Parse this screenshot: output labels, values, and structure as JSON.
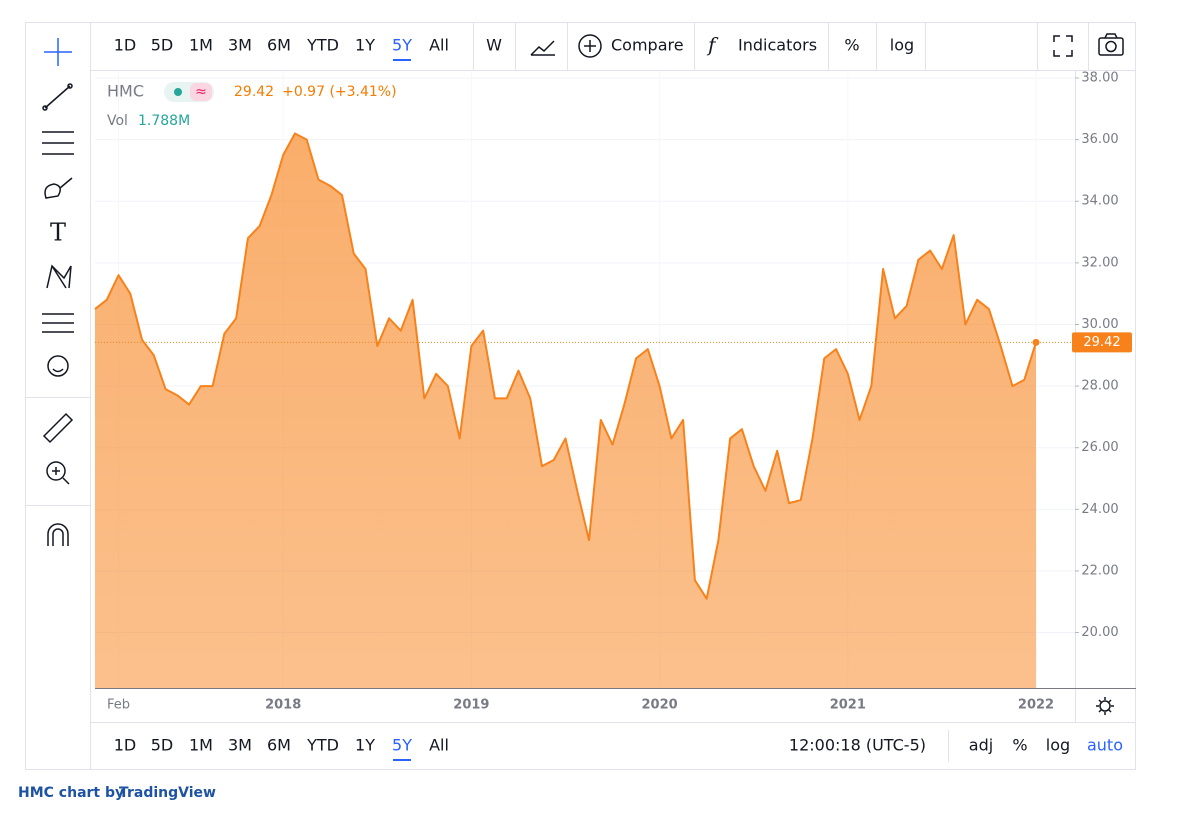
{
  "toolbar": {
    "timeframes": [
      "1D",
      "5D",
      "1M",
      "3M",
      "6M",
      "YTD",
      "1Y",
      "5Y",
      "All"
    ],
    "active": "5Y",
    "interval": "W",
    "compare": "Compare",
    "indicators": "Indicators",
    "percent": "%",
    "log": "log"
  },
  "chart_data": {
    "type": "area",
    "legend": {
      "symbol": "HMC",
      "price": "29.42",
      "change": "+0.97 (+3.41%)",
      "volume_label": "Vol",
      "volume": "1.788M"
    },
    "categories": [
      null,
      null,
      "Feb",
      null,
      null,
      null,
      null,
      null,
      null,
      null,
      null,
      null,
      null,
      null,
      null,
      null,
      "2018",
      null,
      null,
      null,
      null,
      null,
      null,
      null,
      null,
      null,
      null,
      null,
      null,
      null,
      null,
      null,
      "2019",
      null,
      null,
      null,
      null,
      null,
      null,
      null,
      null,
      null,
      null,
      null,
      null,
      null,
      null,
      null,
      "2020",
      null,
      null,
      null,
      null,
      null,
      null,
      null,
      null,
      null,
      null,
      null,
      null,
      null,
      null,
      null,
      "2021",
      null,
      null,
      null,
      null,
      null,
      null,
      null,
      null,
      null,
      null,
      null,
      null,
      null,
      null,
      null,
      "2022"
    ],
    "series": [
      {
        "name": "HMC",
        "color": "#f7821b",
        "values": [
          30.5,
          30.8,
          31.6,
          31.0,
          29.5,
          29.0,
          27.9,
          27.7,
          27.4,
          28.0,
          28.0,
          29.7,
          30.2,
          32.8,
          33.2,
          34.2,
          35.5,
          36.2,
          36.0,
          34.7,
          34.5,
          34.2,
          32.3,
          31.8,
          29.3,
          30.2,
          29.8,
          30.8,
          27.6,
          28.4,
          28.0,
          26.3,
          29.3,
          29.8,
          27.6,
          27.6,
          28.5,
          27.6,
          25.4,
          25.6,
          26.3,
          24.6,
          23.0,
          26.9,
          26.1,
          27.4,
          28.9,
          29.2,
          28.0,
          26.3,
          26.9,
          21.7,
          21.1,
          23.0,
          26.3,
          26.6,
          25.4,
          24.6,
          25.9,
          24.2,
          24.3,
          26.3,
          28.9,
          29.2,
          28.4,
          26.9,
          28.0,
          31.8,
          30.2,
          30.6,
          32.1,
          32.4,
          31.8,
          32.9,
          30.0,
          30.8,
          30.5,
          29.3,
          28.0,
          28.2,
          29.42
        ]
      }
    ],
    "ylim": [
      18.2,
      38.26
    ],
    "yticks": [
      {
        "value": 20,
        "label": "20.00"
      },
      {
        "value": 22,
        "label": "22.00"
      },
      {
        "value": 24,
        "label": "24.00"
      },
      {
        "value": 26,
        "label": "26.00"
      },
      {
        "value": 28,
        "label": "28.00"
      },
      {
        "value": 30,
        "label": "30.00"
      },
      {
        "value": 32,
        "label": "32.00"
      },
      {
        "value": 34,
        "label": "34.00"
      },
      {
        "value": 36,
        "label": "36.00"
      },
      {
        "value": 38,
        "label": "38.00"
      }
    ],
    "grid": true
  },
  "bottombar": {
    "time": "12:00:18 (UTC-5)",
    "adj": "adj",
    "percent": "%",
    "log": "log",
    "auto": "auto"
  },
  "footer": {
    "text": "HMC chart by",
    "brand": "TradingView"
  }
}
